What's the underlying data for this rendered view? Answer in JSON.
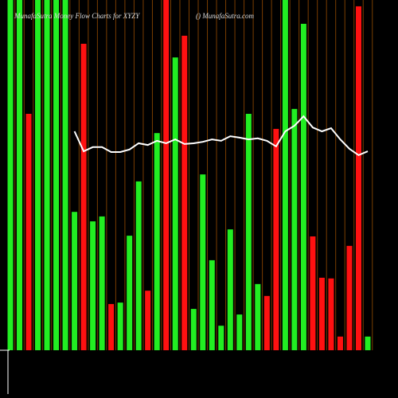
{
  "chart_data": {
    "type": "bar",
    "title": "MunafaSutra Money Flow Charts for XYZY",
    "subtitle": "() MunafaSutra.com",
    "categories": [
      null,
      null,
      null,
      null,
      null,
      null,
      null,
      null,
      null,
      null,
      null,
      null,
      null,
      null,
      null,
      null,
      null,
      null,
      null,
      null,
      null,
      null,
      null,
      null,
      null,
      null,
      null,
      null,
      null,
      null,
      null,
      null,
      null,
      null,
      null,
      null,
      null,
      null,
      null,
      null
    ],
    "values": [
      100,
      100,
      67.5,
      100,
      100,
      100,
      100,
      39.5,
      87.5,
      36.8,
      38.2,
      13.2,
      13.6,
      32.7,
      48.2,
      17,
      62,
      100,
      83.6,
      89.8,
      11.8,
      50.2,
      25.7,
      7,
      34.5,
      10.2,
      67.5,
      18.9,
      15.5,
      63.2,
      100,
      68.9,
      93.2,
      32.5,
      20.7,
      20.5,
      3.9,
      29.8,
      98.2,
      3.9
    ],
    "colors": [
      "#22ee22",
      "#22ee22",
      "#ff1111",
      "#22ee22",
      "#22ee22",
      "#22ee22",
      "#22ee22",
      "#22ee22",
      "#ff1111",
      "#22ee22",
      "#22ee22",
      "#ff1111",
      "#22ee22",
      "#22ee22",
      "#22ee22",
      "#ff1111",
      "#22ee22",
      "#ff1111",
      "#22ee22",
      "#ff1111",
      "#22ee22",
      "#22ee22",
      "#22ee22",
      "#22ee22",
      "#22ee22",
      "#22ee22",
      "#22ee22",
      "#22ee22",
      "#ff1111",
      "#ff1111",
      "#22ee22",
      "#22ee22",
      "#22ee22",
      "#ff1111",
      "#ff1111",
      "#ff1111",
      "#ff1111",
      "#ff1111",
      "#ff1111",
      "#22ee22"
    ],
    "line": {
      "color": "#ffffff",
      "values": [
        null,
        null,
        null,
        null,
        null,
        null,
        null,
        62.5,
        56.8,
        58,
        58,
        56.6,
        56.6,
        57.3,
        59.1,
        58.6,
        59.8,
        59.1,
        60.2,
        58.9,
        59.1,
        59.5,
        60.2,
        59.8,
        61.1,
        60.7,
        60.2,
        60.5,
        59.8,
        58.2,
        62.5,
        64.1,
        66.8,
        63.6,
        62.5,
        63.4,
        60.2,
        57.5,
        55.7,
        56.8
      ]
    },
    "ylim": [
      0,
      100
    ],
    "grid_color": "#7a3d00"
  }
}
